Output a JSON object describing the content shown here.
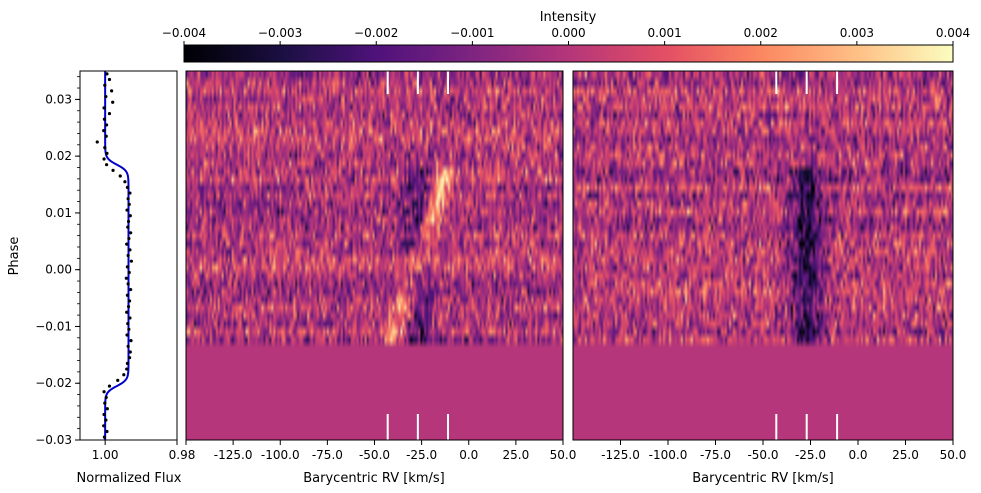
{
  "chart_data": {
    "type": "heatmap",
    "colorbar": {
      "label": "Intensity",
      "colormap": "magma",
      "range": [
        -0.004,
        0.004
      ],
      "ticks": [
        -0.004,
        -0.003,
        -0.002,
        -0.001,
        0.0,
        0.001,
        0.002,
        0.003,
        0.004
      ],
      "tick_labels": [
        "−0.004",
        "−0.003",
        "−0.002",
        "−0.001",
        "0.000",
        "0.001",
        "0.002",
        "0.003",
        "0.004"
      ]
    },
    "y_axis": {
      "label": "Phase",
      "range": [
        -0.03,
        0.035
      ],
      "ticks": [
        -0.03,
        -0.02,
        -0.01,
        0.0,
        0.01,
        0.02,
        0.03
      ],
      "tick_labels": [
        "−0.03",
        "−0.02",
        "−0.01",
        "0.00",
        "0.01",
        "0.02",
        "0.03"
      ]
    },
    "lightcurve": {
      "xlabel": "Normalized Flux",
      "x_range": [
        1.007,
        0.98
      ],
      "x_tick_labels": [
        "1.00",
        "0.98"
      ],
      "x_ticks": [
        1.0,
        0.98
      ],
      "line_color": "#0000cc",
      "transit_ingress": -0.0205,
      "transit_egress": 0.0185,
      "depth_flux": 0.9935,
      "points": [
        [
          -0.0295,
          1.0002
        ],
        [
          -0.0285,
          0.9995
        ],
        [
          -0.0275,
          1.0004
        ],
        [
          -0.0265,
          0.9998
        ],
        [
          -0.0255,
          1.0003
        ],
        [
          -0.0245,
          0.9994
        ],
        [
          -0.0235,
          1.0001
        ],
        [
          -0.0225,
          0.9997
        ],
        [
          -0.0215,
          1.0003
        ],
        [
          -0.0205,
          0.9988
        ],
        [
          -0.0195,
          0.9965
        ],
        [
          -0.0185,
          0.9948
        ],
        [
          -0.0175,
          0.994
        ],
        [
          -0.0165,
          0.9938
        ],
        [
          -0.0155,
          0.9932
        ],
        [
          -0.0145,
          0.993
        ],
        [
          -0.0135,
          0.9936
        ],
        [
          -0.0125,
          0.9928
        ],
        [
          -0.0115,
          0.9939
        ],
        [
          -0.0105,
          0.9934
        ],
        [
          -0.0095,
          0.9937
        ],
        [
          -0.0085,
          0.9931
        ],
        [
          -0.0075,
          0.994
        ],
        [
          -0.0065,
          0.9935
        ],
        [
          -0.0055,
          0.9932
        ],
        [
          -0.0045,
          0.9938
        ],
        [
          -0.0035,
          0.9929
        ],
        [
          -0.0025,
          0.9936
        ],
        [
          -0.0015,
          0.9941
        ],
        [
          -0.0005,
          0.9933
        ],
        [
          0.0005,
          0.9938
        ],
        [
          0.0015,
          0.9927
        ],
        [
          0.0025,
          0.9936
        ],
        [
          0.0035,
          0.9931
        ],
        [
          0.0045,
          0.994
        ],
        [
          0.0055,
          0.9934
        ],
        [
          0.0065,
          0.9929
        ],
        [
          0.0075,
          0.9937
        ],
        [
          0.0085,
          0.9935
        ],
        [
          0.0095,
          0.993
        ],
        [
          0.0105,
          0.9939
        ],
        [
          0.0115,
          0.9933
        ],
        [
          0.0125,
          0.9936
        ],
        [
          0.0135,
          0.9931
        ],
        [
          0.0145,
          0.9938
        ],
        [
          0.0155,
          0.9945
        ],
        [
          0.0165,
          0.9958
        ],
        [
          0.0175,
          0.9978
        ],
        [
          0.0185,
          0.9996
        ],
        [
          0.0195,
          1.0003
        ],
        [
          0.0205,
          0.9995
        ],
        [
          0.0215,
          1.0001
        ],
        [
          0.0225,
          1.0022
        ],
        [
          0.0235,
          0.9997
        ],
        [
          0.0245,
          1.0004
        ],
        [
          0.0255,
          0.9996
        ],
        [
          0.0265,
          1.0002
        ],
        [
          0.0275,
          0.9988
        ],
        [
          0.0285,
          1.0003
        ],
        [
          0.0295,
          0.9979
        ],
        [
          0.0305,
          0.9998
        ],
        [
          0.0315,
          0.9982
        ],
        [
          0.0325,
          1.0001
        ],
        [
          0.0335,
          0.9988
        ],
        [
          0.0345,
          0.9995
        ]
      ]
    },
    "panels": [
      {
        "xlabel": "Barycentric RV [km/s]",
        "x_range": [
          -150,
          50
        ],
        "x_ticks": [
          -125,
          -100,
          -75,
          -50,
          -25,
          0,
          25,
          50
        ],
        "x_tick_labels": [
          "-125.0",
          "-100.0",
          "-75.0",
          "-50.0",
          "-25.0",
          "0.0",
          "25.0",
          "50.0"
        ],
        "x_left_label": "0.98",
        "markers_rv": [
          -43,
          -27,
          -11
        ],
        "data_phase_range": [
          -0.0135,
          0.035
        ],
        "signal": [
          {
            "phase_start": -0.0135,
            "phase_end": 0.0185,
            "rv_start": -41,
            "rv_end": -11,
            "width": 4,
            "amplitude": 0.0028
          },
          {
            "phase_start": -0.013,
            "phase_end": 0.0185,
            "rv_start": -27,
            "rv_end": -27,
            "width": 5,
            "amplitude": -0.0022
          }
        ]
      },
      {
        "xlabel": "Barycentric RV [km/s]",
        "x_range": [
          -150,
          50
        ],
        "x_ticks": [
          -125,
          -100,
          -75,
          -50,
          -25,
          0,
          25,
          50
        ],
        "x_tick_labels": [
          "-125.0",
          "-100.0",
          "-75.0",
          "-50.0",
          "-25.0",
          "0.0",
          "25.0",
          "50.0"
        ],
        "markers_rv": [
          -43,
          -27,
          -11
        ],
        "data_phase_range": [
          -0.0135,
          0.035
        ],
        "signal": [
          {
            "phase_start": -0.013,
            "phase_end": 0.0185,
            "rv_start": -27,
            "rv_end": -27,
            "width": 6,
            "amplitude": -0.0028
          }
        ]
      }
    ]
  }
}
